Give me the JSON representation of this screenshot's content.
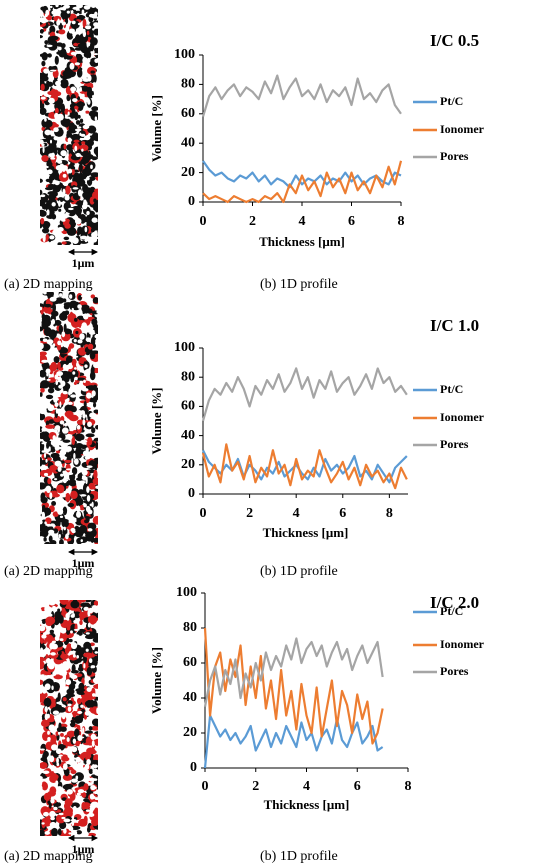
{
  "chart_data": [
    {
      "type": "line",
      "title": "I/C 0.5",
      "xlabel": "Thickness [μm]",
      "ylabel": "Volume [%]",
      "x": [
        0,
        0.25,
        0.5,
        0.75,
        1,
        1.25,
        1.5,
        1.75,
        2,
        2.25,
        2.5,
        2.75,
        3,
        3.25,
        3.5,
        3.75,
        4,
        4.25,
        4.5,
        4.75,
        5,
        5.25,
        5.5,
        5.75,
        6,
        6.25,
        6.5,
        6.75,
        7,
        7.25,
        7.5,
        7.75,
        8
      ],
      "series": [
        {
          "name": "Pt/C",
          "color": "#5b9bd5",
          "values": [
            28,
            22,
            18,
            20,
            16,
            14,
            18,
            16,
            20,
            14,
            18,
            12,
            16,
            14,
            10,
            18,
            12,
            16,
            14,
            18,
            12,
            16,
            14,
            20,
            14,
            18,
            12,
            16,
            18,
            14,
            12,
            20,
            18
          ]
        },
        {
          "name": "Ionomer",
          "color": "#ed7d31",
          "values": [
            6,
            2,
            4,
            2,
            0,
            4,
            2,
            0,
            2,
            0,
            4,
            2,
            6,
            0,
            12,
            6,
            18,
            8,
            14,
            4,
            20,
            10,
            16,
            6,
            20,
            8,
            14,
            6,
            18,
            10,
            24,
            12,
            28
          ]
        },
        {
          "name": "Pores",
          "color": "#a5a5a5",
          "values": [
            58,
            72,
            78,
            70,
            76,
            80,
            72,
            78,
            75,
            70,
            82,
            74,
            86,
            70,
            78,
            84,
            72,
            76,
            70,
            80,
            68,
            76,
            72,
            78,
            66,
            84,
            70,
            74,
            68,
            76,
            80,
            66,
            60
          ]
        }
      ],
      "xlim": [
        0,
        8
      ],
      "ylim": [
        0,
        100
      ],
      "xticks": [
        0,
        2,
        4,
        6,
        8
      ],
      "yticks": [
        0,
        20,
        40,
        60,
        80,
        100
      ]
    },
    {
      "type": "line",
      "title": "I/C 1.0",
      "xlabel": "Thickness [μm]",
      "ylabel": "Volume [%]",
      "x": [
        0,
        0.25,
        0.5,
        0.75,
        1,
        1.25,
        1.5,
        1.75,
        2,
        2.25,
        2.5,
        2.75,
        3,
        3.25,
        3.5,
        3.75,
        4,
        4.25,
        4.5,
        4.75,
        5,
        5.25,
        5.5,
        5.75,
        6,
        6.25,
        6.5,
        6.75,
        7,
        7.25,
        7.5,
        7.75,
        8,
        8.25,
        8.5,
        8.75
      ],
      "series": [
        {
          "name": "Pt/C",
          "color": "#5b9bd5",
          "values": [
            30,
            22,
            18,
            14,
            20,
            16,
            24,
            12,
            20,
            16,
            10,
            18,
            14,
            22,
            12,
            16,
            20,
            14,
            10,
            18,
            12,
            24,
            16,
            20,
            14,
            18,
            26,
            12,
            16,
            10,
            20,
            14,
            8,
            18,
            22,
            26
          ]
        },
        {
          "name": "Ionomer",
          "color": "#ed7d31",
          "values": [
            28,
            12,
            20,
            8,
            34,
            16,
            22,
            10,
            26,
            8,
            18,
            12,
            30,
            14,
            20,
            6,
            24,
            10,
            16,
            12,
            30,
            18,
            8,
            14,
            22,
            10,
            18,
            6,
            20,
            12,
            16,
            8,
            14,
            4,
            18,
            10
          ]
        },
        {
          "name": "Pores",
          "color": "#a5a5a5",
          "values": [
            50,
            64,
            72,
            68,
            76,
            70,
            80,
            72,
            60,
            74,
            68,
            78,
            72,
            82,
            70,
            76,
            86,
            72,
            80,
            66,
            78,
            72,
            84,
            70,
            76,
            80,
            68,
            74,
            82,
            72,
            86,
            76,
            80,
            70,
            74,
            68
          ]
        }
      ],
      "xlim": [
        0,
        8.8
      ],
      "ylim": [
        0,
        100
      ],
      "xticks": [
        0,
        2,
        4,
        6,
        8
      ],
      "yticks": [
        0,
        20,
        40,
        60,
        80,
        100
      ]
    },
    {
      "type": "line",
      "title": "I/C 2.0",
      "xlabel": "Thickness [μm]",
      "ylabel": "Volume [%]",
      "x": [
        0,
        0.2,
        0.4,
        0.6,
        0.8,
        1,
        1.2,
        1.4,
        1.6,
        1.8,
        2,
        2.2,
        2.4,
        2.6,
        2.8,
        3,
        3.2,
        3.4,
        3.6,
        3.8,
        4,
        4.2,
        4.4,
        4.6,
        4.8,
        5,
        5.2,
        5.4,
        5.6,
        5.8,
        6,
        6.2,
        6.4,
        6.6,
        6.8,
        7
      ],
      "series": [
        {
          "name": "Pt/C",
          "color": "#5b9bd5",
          "values": [
            0,
            30,
            24,
            18,
            22,
            16,
            20,
            14,
            18,
            24,
            10,
            16,
            22,
            12,
            20,
            14,
            24,
            18,
            12,
            26,
            16,
            20,
            10,
            18,
            22,
            14,
            28,
            16,
            12,
            20,
            26,
            14,
            18,
            24,
            10,
            12
          ]
        },
        {
          "name": "Ionomer",
          "color": "#ed7d31",
          "values": [
            80,
            30,
            58,
            66,
            44,
            62,
            52,
            70,
            36,
            58,
            40,
            64,
            34,
            50,
            28,
            56,
            30,
            44,
            22,
            48,
            30,
            20,
            46,
            18,
            34,
            50,
            24,
            44,
            36,
            20,
            42,
            28,
            38,
            14,
            20,
            34
          ]
        },
        {
          "name": "Pores",
          "color": "#a5a5a5",
          "values": [
            35,
            50,
            58,
            42,
            56,
            48,
            62,
            40,
            54,
            46,
            60,
            50,
            66,
            56,
            64,
            58,
            70,
            62,
            74,
            60,
            68,
            72,
            64,
            70,
            58,
            66,
            72,
            62,
            68,
            56,
            64,
            70,
            60,
            66,
            72,
            52
          ]
        }
      ],
      "xlim": [
        0,
        8
      ],
      "ylim": [
        0,
        100
      ],
      "xticks": [
        0,
        2,
        4,
        6,
        8
      ],
      "yticks": [
        0,
        20,
        40,
        60,
        80,
        100
      ]
    }
  ],
  "figure": {
    "rows": [
      {
        "scale_label": "1μm",
        "caption_a": "(a) 2D mapping",
        "caption_b": "(b) 1D profile"
      },
      {
        "scale_label": "1μm",
        "caption_a": "(a) 2D mapping",
        "caption_b": "(b) 1D profile"
      },
      {
        "scale_label": "1μm",
        "caption_a": "(a) 2D mapping",
        "caption_b": "(b) 1D profile"
      }
    ]
  }
}
